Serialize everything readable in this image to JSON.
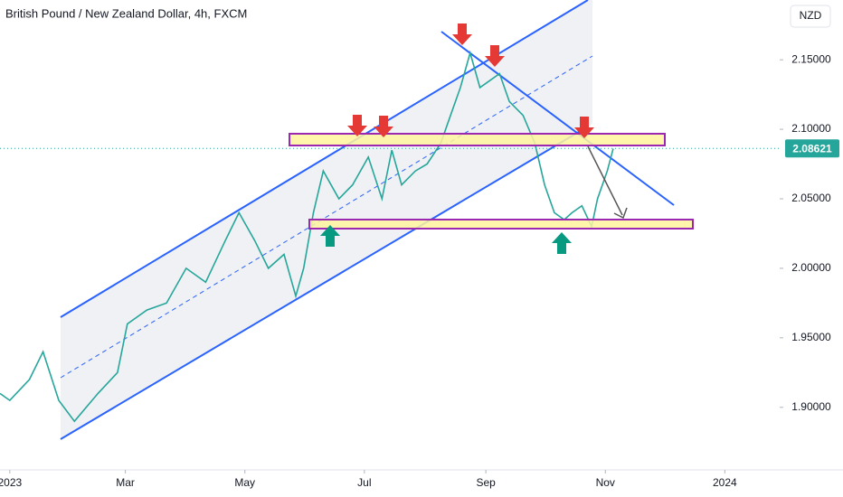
{
  "chart_data": {
    "type": "line",
    "title": "British Pound / New Zealand Dollar, 4h, FXCM",
    "currency": "NZD",
    "last_price": 2.08621,
    "last_price_label": "2.08621",
    "series": [
      {
        "name": "GBPNZD",
        "color": "#26a69a",
        "x": [
          -5,
          0,
          10,
          17,
          25,
          33,
          45,
          55,
          60,
          70,
          80,
          90,
          100,
          110,
          117,
          125,
          132,
          140,
          146,
          150,
          155,
          160,
          168,
          175,
          183,
          190,
          195,
          200,
          207,
          213,
          220,
          225,
          230,
          235,
          240,
          245,
          250,
          255,
          262,
          268,
          273,
          278,
          283,
          287,
          292,
          297,
          300,
          305,
          308
        ],
        "values": [
          1.91,
          1.905,
          1.92,
          1.94,
          1.905,
          1.89,
          1.91,
          1.925,
          1.96,
          1.97,
          1.975,
          2.0,
          1.99,
          2.02,
          2.04,
          2.02,
          2.0,
          2.01,
          1.98,
          2.0,
          2.04,
          2.07,
          2.05,
          2.06,
          2.08,
          2.05,
          2.085,
          2.06,
          2.07,
          2.075,
          2.09,
          2.11,
          2.13,
          2.155,
          2.13,
          2.135,
          2.14,
          2.12,
          2.11,
          2.09,
          2.06,
          2.04,
          2.035,
          2.04,
          2.045,
          2.03,
          2.05,
          2.07,
          2.086
        ]
      }
    ],
    "xlim": [
      -5,
      393
    ],
    "ylim": [
      1.855,
      2.193
    ],
    "yticks": [
      {
        "value": 1.9,
        "label": "1.90000"
      },
      {
        "value": 1.95,
        "label": "1.95000"
      },
      {
        "value": 2.0,
        "label": "2.00000"
      },
      {
        "value": 2.05,
        "label": "2.05000"
      },
      {
        "value": 2.1,
        "label": "2.10000"
      },
      {
        "value": 2.15,
        "label": "2.15000"
      }
    ],
    "xticks": [
      {
        "value": 0,
        "label": "2023"
      },
      {
        "value": 59,
        "label": "Mar"
      },
      {
        "value": 120,
        "label": "May"
      },
      {
        "value": 181,
        "label": "Jul"
      },
      {
        "value": 243,
        "label": "Sep"
      },
      {
        "value": 304,
        "label": "Nov"
      },
      {
        "value": 365,
        "label": "2024"
      }
    ]
  }
}
